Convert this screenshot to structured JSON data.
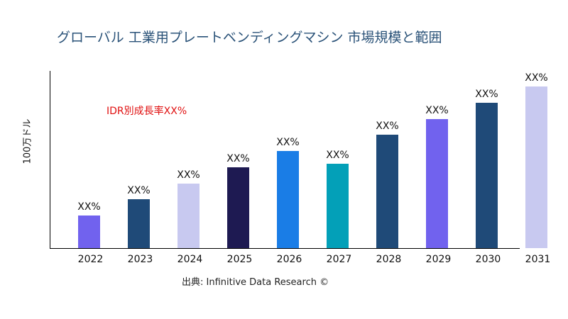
{
  "chart_data": {
    "type": "bar",
    "title": "グローバル 工業用プレートベンディングマシン 市場規模と範囲",
    "xlabel": "",
    "ylabel": "100万ドル",
    "annotation": "IDR別成長率XX%",
    "source": "出典: Infinitive Data Research ©",
    "categories": [
      "2022",
      "2023",
      "2024",
      "2025",
      "2026",
      "2027",
      "2028",
      "2029",
      "2030",
      "2031"
    ],
    "values": [
      46,
      69,
      91,
      114,
      137,
      119,
      160,
      182,
      205,
      228
    ],
    "data_labels": [
      "XX%",
      "XX%",
      "XX%",
      "XX%",
      "XX%",
      "XX%",
      "XX%",
      "XX%",
      "XX%",
      "XX%"
    ],
    "colors": [
      "#7162ee",
      "#1f4a78",
      "#c8c9f0",
      "#1e1a52",
      "#1a7de6",
      "#03a0b8",
      "#1f4a78",
      "#7162ee",
      "#1f4a78",
      "#c8c9f0"
    ],
    "ylim": [
      0,
      250
    ],
    "grid": false,
    "legend": "none"
  }
}
